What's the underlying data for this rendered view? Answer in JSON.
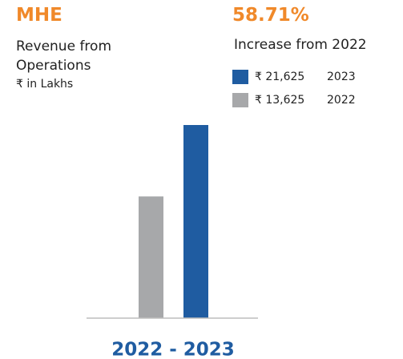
{
  "chart_data": {
    "type": "bar",
    "title": "MHE",
    "subtitle": "Revenue from Operations",
    "unit": "₹ in Lakhs",
    "headline": "58.71%",
    "headline_note": "Increase from 2022",
    "categories": [
      "2022 - 2023"
    ],
    "series": [
      {
        "name": "2023",
        "color": "#1f5ca1",
        "values": [
          21625
        ],
        "value_labels": [
          "₹ 21,625"
        ]
      },
      {
        "name": "2022",
        "color": "#a7a8aa",
        "values": [
          13625
        ],
        "value_labels": [
          "₹ 13,625"
        ]
      }
    ]
  }
}
